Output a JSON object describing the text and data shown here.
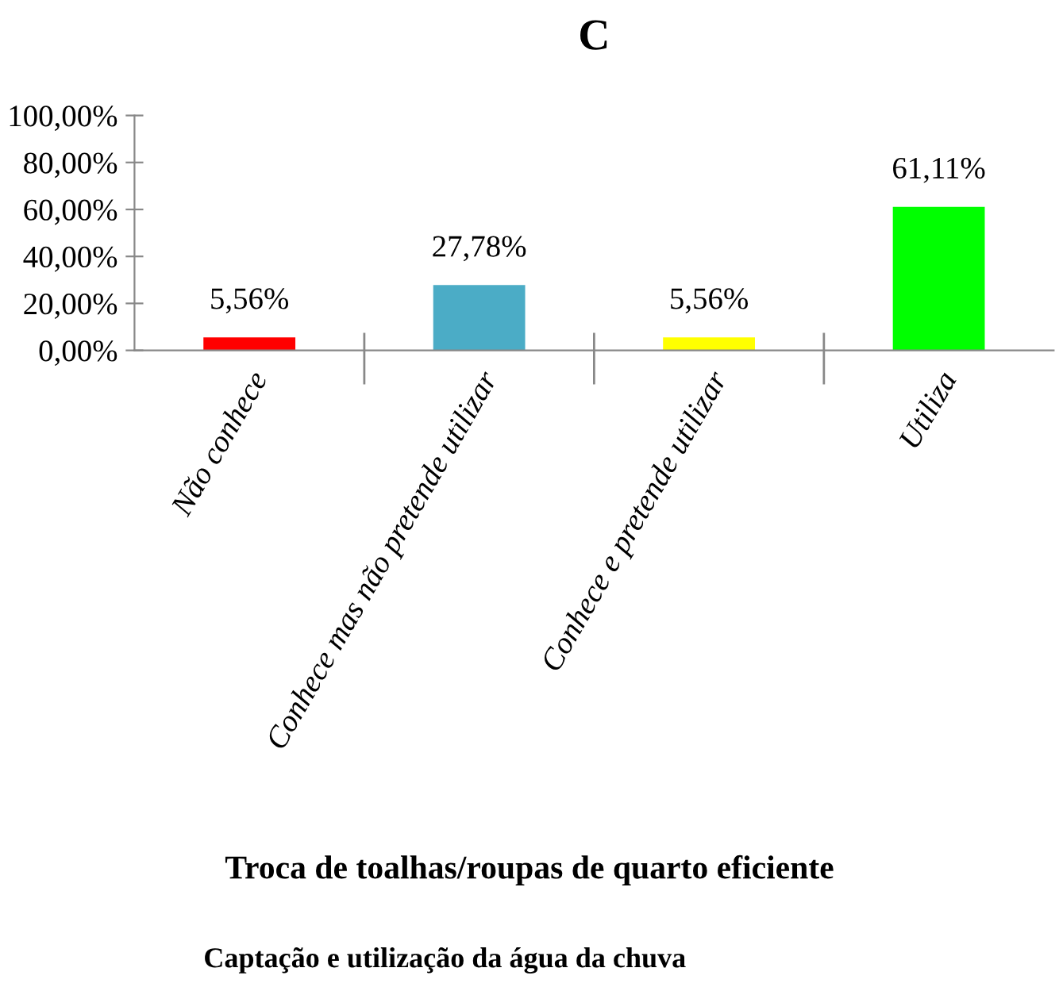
{
  "chart_data": {
    "type": "bar",
    "title": "C",
    "xlabel": "Troca de toalhas/roupas de quarto eficiente",
    "categories": [
      "Não conhece",
      "Conhece mas não pretende utilizar",
      "Conhece e pretende utilizar",
      "Utiliza"
    ],
    "values": [
      5.56,
      27.78,
      5.56,
      61.11
    ],
    "colors": [
      "#ff0000",
      "#4bacc6",
      "#ffff00",
      "#00ff00"
    ],
    "value_labels": [
      "5,56%",
      "27,78%",
      "5,56%",
      "61,11%"
    ],
    "ylim": [
      0,
      100
    ],
    "yticks": [
      {
        "value": 0,
        "label": "0,00%"
      },
      {
        "value": 20,
        "label": "20,00%"
      },
      {
        "value": 40,
        "label": "40,00%"
      },
      {
        "value": 60,
        "label": "60,00%"
      },
      {
        "value": 80,
        "label": "80,00%"
      },
      {
        "value": 100,
        "label": "100,00%"
      }
    ],
    "grid": false,
    "annotations": [
      "Captação e utilização da água da chuva"
    ]
  }
}
